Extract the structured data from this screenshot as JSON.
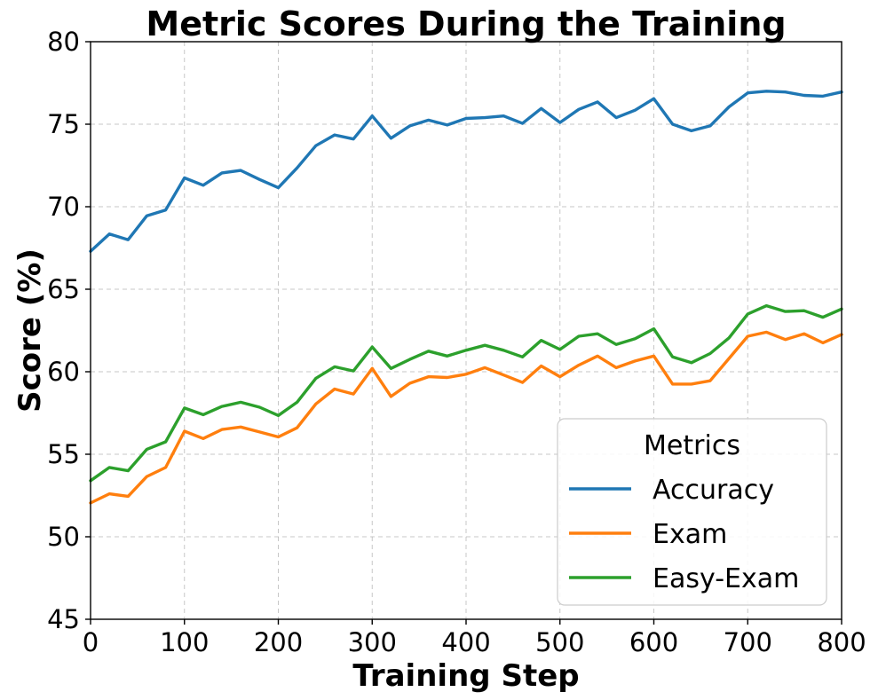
{
  "chart_data": {
    "type": "line",
    "title": "Metric Scores During the Training",
    "xlabel": "Training Step",
    "ylabel": "Score (%)",
    "xlim": [
      0,
      800
    ],
    "ylim": [
      45,
      80
    ],
    "xticks": [
      0,
      100,
      200,
      300,
      400,
      500,
      600,
      700,
      800
    ],
    "yticks": [
      45,
      50,
      55,
      60,
      65,
      70,
      75,
      80
    ],
    "grid": true,
    "legend": {
      "title": "Metrics",
      "location": "lower-right"
    },
    "x": [
      0,
      20,
      40,
      60,
      80,
      100,
      120,
      140,
      160,
      180,
      200,
      220,
      240,
      260,
      280,
      300,
      320,
      340,
      360,
      380,
      400,
      420,
      440,
      460,
      480,
      500,
      520,
      540,
      560,
      580,
      600,
      620,
      640,
      660,
      680,
      700,
      720,
      740,
      760,
      780,
      800
    ],
    "series": [
      {
        "name": "Accuracy",
        "color": "#1f77b4",
        "values": [
          67.3,
          68.35,
          68.0,
          69.45,
          69.8,
          71.75,
          71.3,
          72.05,
          72.2,
          71.65,
          71.15,
          72.35,
          73.7,
          74.35,
          74.1,
          75.5,
          74.15,
          74.9,
          75.25,
          74.95,
          75.35,
          75.4,
          75.5,
          75.05,
          75.95,
          75.1,
          75.9,
          76.35,
          75.4,
          75.85,
          76.55,
          75.0,
          74.6,
          74.9,
          76.05,
          76.9,
          77.0,
          76.95,
          76.75,
          76.7,
          76.95
        ]
      },
      {
        "name": "Exam",
        "color": "#ff7f0e",
        "values": [
          52.05,
          52.6,
          52.45,
          53.65,
          54.2,
          56.4,
          55.95,
          56.5,
          56.65,
          56.35,
          56.05,
          56.6,
          58.05,
          58.95,
          58.65,
          60.2,
          58.5,
          59.3,
          59.7,
          59.65,
          59.85,
          60.25,
          59.8,
          59.35,
          60.35,
          59.7,
          60.4,
          60.95,
          60.25,
          60.65,
          60.95,
          59.25,
          59.25,
          59.45,
          60.8,
          62.15,
          62.4,
          61.95,
          62.3,
          61.75,
          62.25
        ]
      },
      {
        "name": "Easy-Exam",
        "color": "#2ca02c",
        "values": [
          53.4,
          54.2,
          54.0,
          55.3,
          55.75,
          57.8,
          57.4,
          57.9,
          58.15,
          57.85,
          57.35,
          58.15,
          59.6,
          60.3,
          60.05,
          61.5,
          60.2,
          60.75,
          61.25,
          60.95,
          61.3,
          61.6,
          61.3,
          60.9,
          61.9,
          61.35,
          62.15,
          62.3,
          61.65,
          62.0,
          62.6,
          60.9,
          60.55,
          61.1,
          62.05,
          63.5,
          64.0,
          63.65,
          63.7,
          63.3,
          63.8
        ]
      }
    ]
  }
}
